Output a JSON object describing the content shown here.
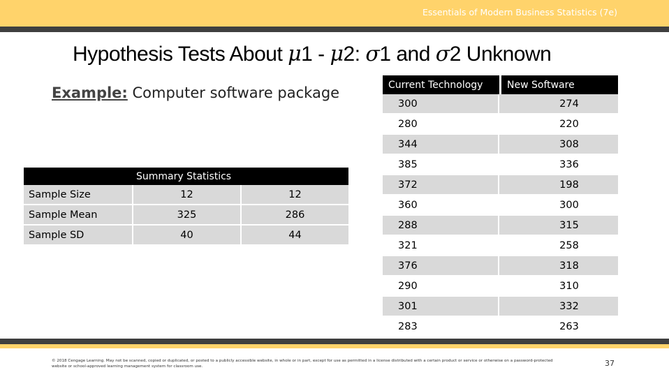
{
  "header": {
    "course_title": "Essentials of Modern Business Statistics (7e)"
  },
  "slide": {
    "title_prefix": "Hypothesis Tests About ",
    "mu": "μ",
    "sub1": "1",
    "minus": " - ",
    "sub2": "2",
    "colon": ": ",
    "sigma": "σ",
    "and": " and ",
    "title_suffix": " Unknown",
    "example_label": "Example:",
    "example_text": " Computer software package"
  },
  "summary": {
    "header": "Summary Statistics",
    "rows": [
      {
        "label": "Sample Size",
        "v1": "12",
        "v2": "12"
      },
      {
        "label": "Sample Mean",
        "v1": "325",
        "v2": "286"
      },
      {
        "label": "Sample SD",
        "v1": "40",
        "v2": "44"
      }
    ]
  },
  "data_table": {
    "col1_header": "Current Technology",
    "col2_header": "New Software",
    "rows": [
      [
        "300",
        "274"
      ],
      [
        "280",
        "220"
      ],
      [
        "344",
        "308"
      ],
      [
        "385",
        "336"
      ],
      [
        "372",
        "198"
      ],
      [
        "360",
        "300"
      ],
      [
        "288",
        "315"
      ],
      [
        "321",
        "258"
      ],
      [
        "376",
        "318"
      ],
      [
        "290",
        "310"
      ],
      [
        "301",
        "332"
      ],
      [
        "283",
        "263"
      ]
    ]
  },
  "footer": {
    "copyright": "© 2018 Cengage Learning. May not be scanned, copied or duplicated, or posted to a publicly accessible website, in whole or in part, except for use as permitted in a license distributed with a certain product or service or otherwise on a password-protected website or school-approved learning management system for classroom use.",
    "page_number": "37"
  },
  "colors": {
    "accent": "#ffd36b",
    "dark_rule": "#3f3f3f",
    "band": "#d9d9d9"
  }
}
